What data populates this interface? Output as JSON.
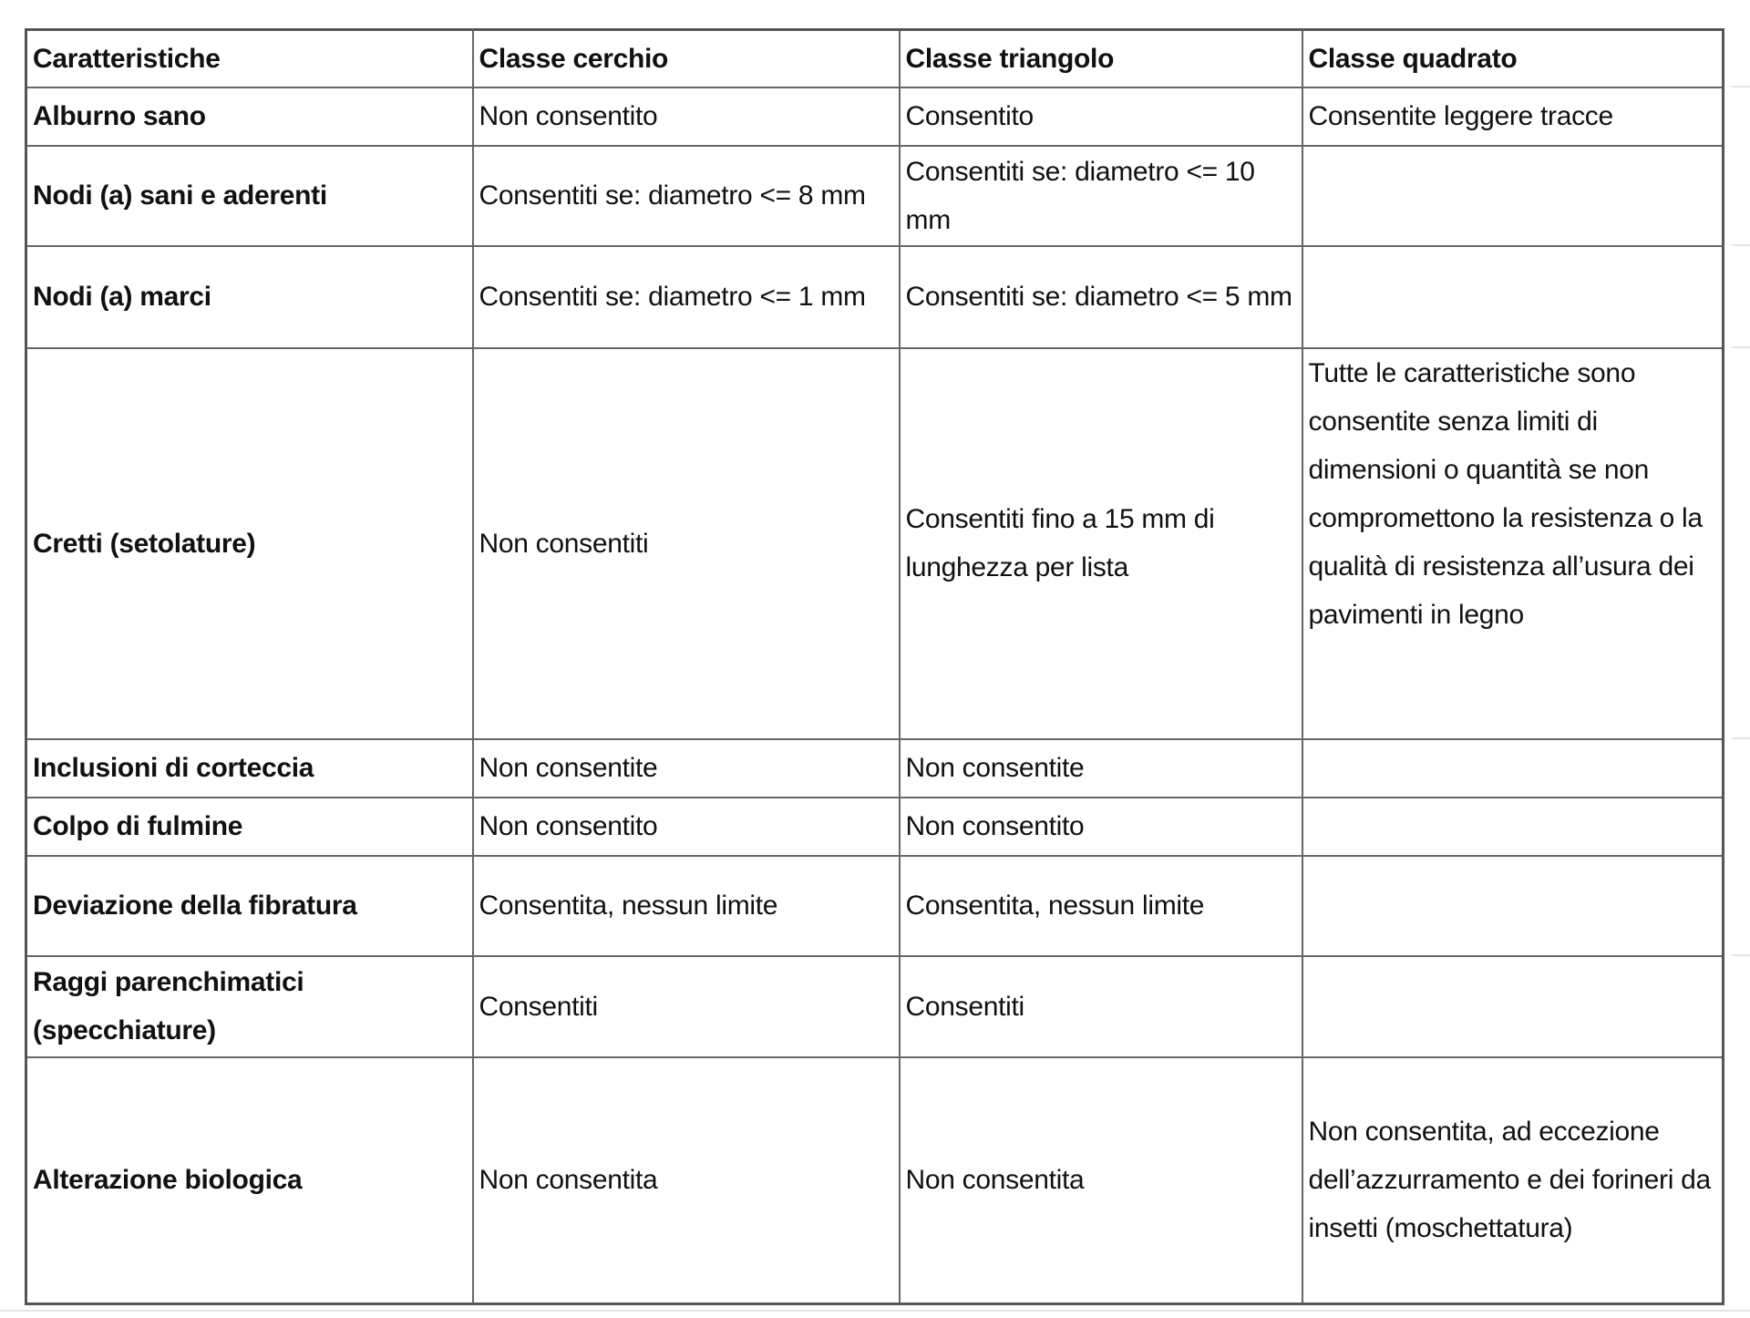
{
  "table": {
    "headers": [
      "Caratteristiche",
      "Classe cerchio",
      "Classe triangolo",
      "Classe quadrato"
    ],
    "rows": [
      [
        "Alburno sano",
        "Non consentito",
        "Consentito",
        "Consentite leggere tracce"
      ],
      [
        "Nodi (a) sani e aderenti",
        "Consentiti se: diametro <= 8 mm",
        "Consentiti se: diametro <= 10 mm",
        ""
      ],
      [
        "Nodi (a) marci",
        "Consentiti se: diametro <= 1 mm",
        "Consentiti se: diametro <= 5 mm",
        ""
      ],
      [
        "Cretti (setolature)",
        "Non consentiti",
        "Consentiti fino a 15 mm di lunghezza per lista",
        "Tutte le caratteristiche sono consentite senza limiti di dimensioni o quantità se non compromettono la resistenza o la qualità di resistenza all’usura dei pavimenti in legno"
      ],
      [
        "Inclusioni di corteccia",
        "Non consentite",
        "Non consentite",
        ""
      ],
      [
        "Colpo di fulmine",
        "Non consentito",
        "Non consentito",
        ""
      ],
      [
        "Deviazione della fibratura",
        "Consentita, nessun limite",
        "Consentita, nessun limite",
        ""
      ],
      [
        "Raggi parenchimatici (specchiature)",
        "Consentiti",
        "Consentiti",
        ""
      ],
      [
        "Alterazione biologica",
        "Non consentita",
        "Non consentita",
        "Non consentita, ad eccezione dell’azzurramento e dei forineri da insetti (moschettatura)"
      ]
    ]
  }
}
